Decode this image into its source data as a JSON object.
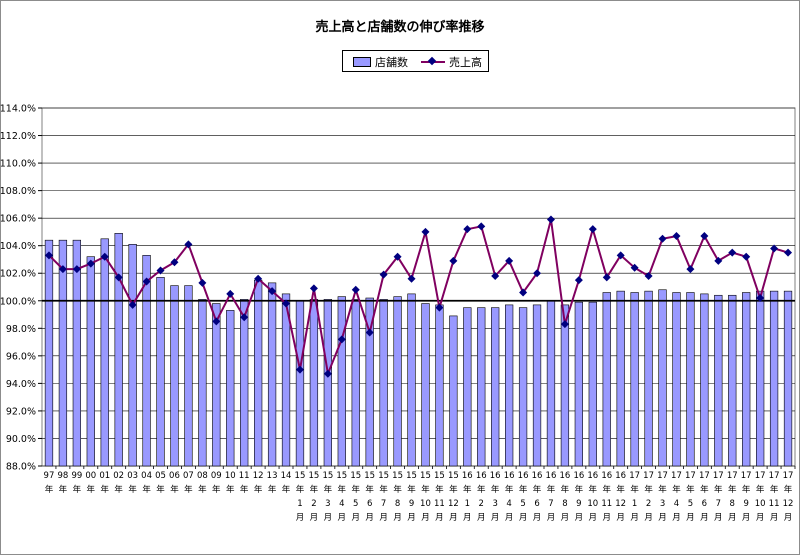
{
  "chart_data": {
    "type": "bar",
    "title": "売上高と店舗数の伸び率推移",
    "xlabel": "",
    "ylabel": "",
    "ylim": [
      88,
      114
    ],
    "y_ticks": [
      "88.0%",
      "90.0%",
      "92.0%",
      "94.0%",
      "96.0%",
      "98.0%",
      "100.0%",
      "102.0%",
      "104.0%",
      "106.0%",
      "108.0%",
      "110.0%",
      "112.0%",
      "114.0%"
    ],
    "grid": true,
    "reference_line": 100,
    "legend": {
      "position": "top-center",
      "entries": [
        "店舗数",
        "売上高"
      ]
    },
    "categories": [
      [
        "97",
        "年",
        ""
      ],
      [
        "98",
        "年",
        ""
      ],
      [
        "99",
        "年",
        ""
      ],
      [
        "00",
        "年",
        ""
      ],
      [
        "01",
        "年",
        ""
      ],
      [
        "02",
        "年",
        ""
      ],
      [
        "03",
        "年",
        ""
      ],
      [
        "04",
        "年",
        ""
      ],
      [
        "05",
        "年",
        ""
      ],
      [
        "06",
        "年",
        ""
      ],
      [
        "07",
        "年",
        ""
      ],
      [
        "08",
        "年",
        ""
      ],
      [
        "09",
        "年",
        ""
      ],
      [
        "10",
        "年",
        ""
      ],
      [
        "11",
        "年",
        ""
      ],
      [
        "12",
        "年",
        ""
      ],
      [
        "13",
        "年",
        ""
      ],
      [
        "14",
        "年",
        ""
      ],
      [
        "15",
        "年",
        "1",
        "月"
      ],
      [
        "15",
        "年",
        "2",
        "月"
      ],
      [
        "15",
        "年",
        "3",
        "月"
      ],
      [
        "15",
        "年",
        "4",
        "月"
      ],
      [
        "15",
        "年",
        "5",
        "月"
      ],
      [
        "15",
        "年",
        "6",
        "月"
      ],
      [
        "15",
        "年",
        "7",
        "月"
      ],
      [
        "15",
        "年",
        "8",
        "月"
      ],
      [
        "15",
        "年",
        "9",
        "月"
      ],
      [
        "15",
        "年",
        "10",
        "月"
      ],
      [
        "15",
        "年",
        "11",
        "月"
      ],
      [
        "15",
        "年",
        "12",
        "月"
      ],
      [
        "16",
        "年",
        "1",
        "月"
      ],
      [
        "16",
        "年",
        "2",
        "月"
      ],
      [
        "16",
        "年",
        "3",
        "月"
      ],
      [
        "16",
        "年",
        "4",
        "月"
      ],
      [
        "16",
        "年",
        "5",
        "月"
      ],
      [
        "16",
        "年",
        "6",
        "月"
      ],
      [
        "16",
        "年",
        "7",
        "月"
      ],
      [
        "16",
        "年",
        "8",
        "月"
      ],
      [
        "16",
        "年",
        "9",
        "月"
      ],
      [
        "16",
        "年",
        "10",
        "月"
      ],
      [
        "16",
        "年",
        "11",
        "月"
      ],
      [
        "16",
        "年",
        "12",
        "月"
      ],
      [
        "17",
        "年",
        "1",
        "月"
      ],
      [
        "17",
        "年",
        "2",
        "月"
      ],
      [
        "17",
        "年",
        "3",
        "月"
      ],
      [
        "17",
        "年",
        "4",
        "月"
      ],
      [
        "17",
        "年",
        "5",
        "月"
      ],
      [
        "17",
        "年",
        "6",
        "月"
      ],
      [
        "17",
        "年",
        "7",
        "月"
      ],
      [
        "17",
        "年",
        "8",
        "月"
      ],
      [
        "17",
        "年",
        "9",
        "月"
      ],
      [
        "17",
        "年",
        "10",
        "月"
      ],
      [
        "17",
        "年",
        "11",
        "月"
      ],
      [
        "17",
        "年",
        "12",
        "月"
      ]
    ],
    "series": [
      {
        "name": "店舗数",
        "type": "bar",
        "color": "#9999ff",
        "values": [
          104.4,
          104.4,
          104.4,
          103.2,
          104.5,
          104.9,
          104.1,
          103.3,
          101.7,
          101.1,
          101.1,
          100.1,
          99.8,
          99.3,
          100.1,
          101.5,
          101.3,
          100.5,
          100.0,
          100.1,
          100.1,
          100.3,
          100.1,
          100.2,
          100.1,
          100.3,
          100.5,
          99.8,
          99.7,
          98.9,
          99.5,
          99.5,
          99.5,
          99.7,
          99.5,
          99.7,
          100.0,
          99.7,
          99.9,
          99.9,
          100.6,
          100.7,
          100.6,
          100.7,
          100.8,
          100.6,
          100.6,
          100.5,
          100.4,
          100.4,
          100.6,
          100.7,
          100.7,
          100.7
        ]
      },
      {
        "name": "売上高",
        "type": "line",
        "color": "#800060",
        "marker_color": "#000080",
        "values": [
          103.3,
          102.3,
          102.3,
          102.7,
          103.2,
          101.7,
          99.7,
          101.4,
          102.2,
          102.8,
          104.1,
          101.3,
          98.5,
          100.5,
          98.8,
          101.6,
          100.7,
          99.8,
          95.0,
          100.9,
          94.7,
          97.2,
          100.8,
          97.7,
          101.9,
          103.2,
          101.6,
          105.0,
          99.5,
          102.9,
          105.2,
          105.4,
          101.8,
          102.9,
          100.6,
          102.0,
          105.9,
          98.3,
          101.5,
          105.2,
          101.7,
          103.3,
          102.4,
          101.8,
          104.5,
          104.7,
          102.3,
          104.7,
          102.9,
          103.5,
          103.2,
          100.2,
          103.8,
          103.5
        ]
      }
    ]
  }
}
